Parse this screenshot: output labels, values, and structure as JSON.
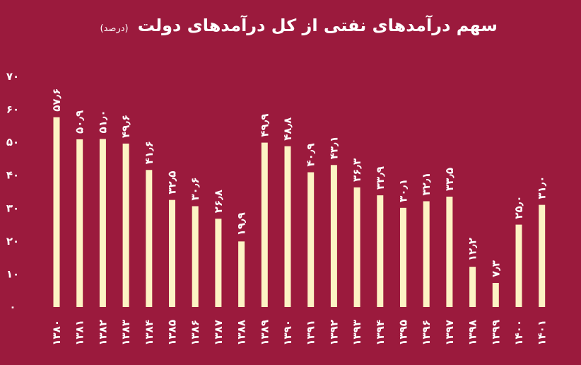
{
  "chart_data": {
    "type": "bar",
    "title": "سهم درآمدهای نفتی از کل درآمدهای دولت",
    "subtitle": "(درصد)",
    "xlabel": "",
    "ylabel": "",
    "ylim": [
      0,
      70
    ],
    "yticks": [
      "۰",
      "۱۰",
      "۲۰",
      "۳۰",
      "۴۰",
      "۵۰",
      "۶۰",
      "۷۰"
    ],
    "ytick_values": [
      0,
      10,
      20,
      30,
      40,
      50,
      60,
      70
    ],
    "categories": [
      "۱۳۸۰",
      "۱۳۸۱",
      "۱۳۸۲",
      "۱۳۸۳",
      "۱۳۸۴",
      "۱۳۸۵",
      "۱۳۸۶",
      "۱۳۸۷",
      "۱۳۸۸",
      "۱۳۸۹",
      "۱۳۹۰",
      "۱۳۹۱",
      "۱۳۹۲",
      "۱۳۹۳",
      "۱۳۹۴",
      "۱۳۹۵",
      "۱۳۹۶",
      "۱۳۹۷",
      "۱۳۹۸",
      "۱۳۹۹",
      "۱۴۰۰",
      "۱۴۰۱"
    ],
    "values": [
      57.6,
      50.9,
      51.0,
      49.6,
      41.6,
      32.5,
      30.6,
      26.8,
      19.9,
      49.9,
      48.8,
      40.9,
      43.1,
      36.3,
      33.9,
      30.1,
      32.1,
      33.5,
      12.2,
      7.3,
      25.0,
      31.0
    ],
    "value_labels": [
      "۵۷٫۶",
      "۵۰٫۹",
      "۵۱٫۰",
      "۴۹٫۶",
      "۴۱٫۶",
      "۳۲٫۵",
      "۳۰٫۶",
      "۲۶٫۸",
      "۱۹٫۹",
      "۴۹٫۹",
      "۴۸٫۸",
      "۴۰٫۹",
      "۴۳٫۱",
      "۳۶٫۳",
      "۳۳٫۹",
      "۳۰٫۱",
      "۳۲٫۱",
      "۳۳٫۵",
      "۱۲٫۲",
      "۷٫۳",
      "۲۵٫۰",
      "۳۱٫۰"
    ],
    "grid": false,
    "colors": {
      "background": "#9b1a3d",
      "bar": "#fdf3c4",
      "text": "#ffffff"
    }
  }
}
